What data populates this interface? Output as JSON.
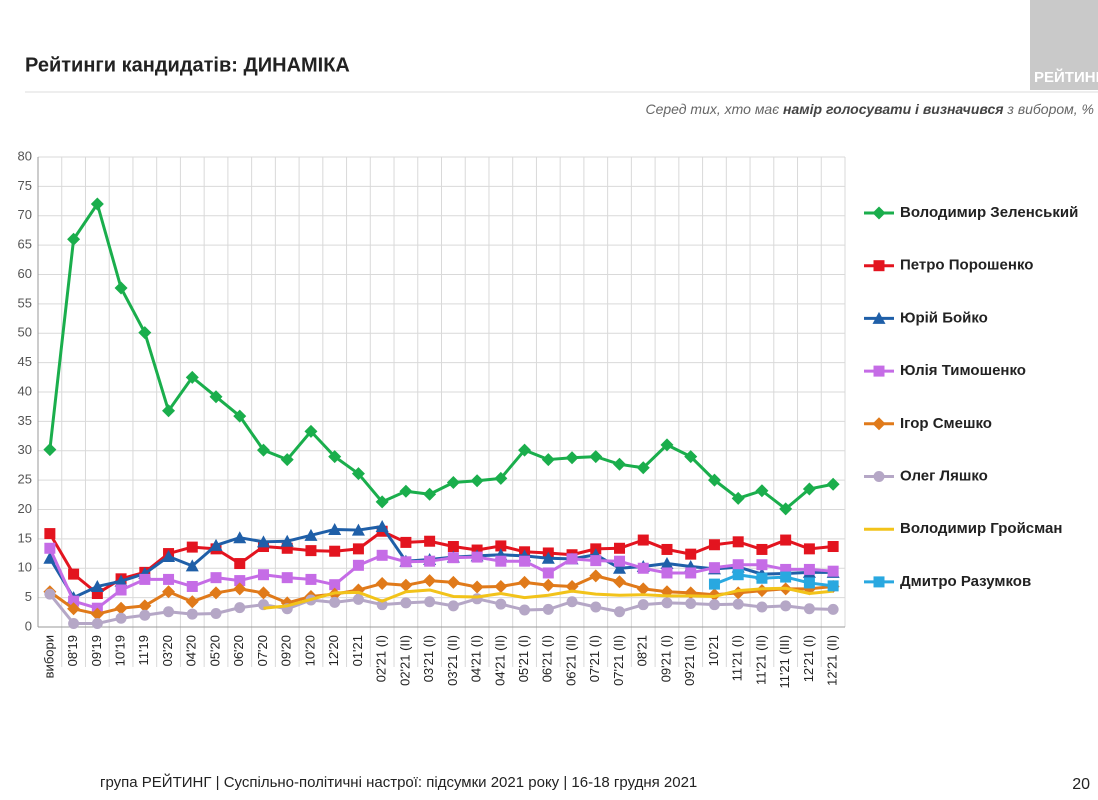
{
  "logo": "РЕЙТИНГ",
  "footer": "група РЕЙТИНГ | Суспільно-політичні настрої: підсумки 2021 року | 16-18 грудня 2021",
  "page_number": "20",
  "chart_data": {
    "type": "line",
    "title": "Рейтинги кандидатів: ДИНАМІКА",
    "subtitle": [
      "Серед тих, хто має ",
      "намір голосувати і визначився",
      " з вибором, %"
    ],
    "categories": [
      "вибори",
      "08'19",
      "09'19",
      "10'19",
      "11'19",
      "03'20",
      "04'20",
      "05'20",
      "06'20",
      "07'20",
      "09'20",
      "10'20",
      "12'20",
      "01'21",
      "02'21 (I)",
      "02'21 (II)",
      "03'21 (I)",
      "03'21 (II)",
      "04'21 (I)",
      "04'21 (II)",
      "05'21 (I)",
      "06'21 (I)",
      "06'21 (II)",
      "07'21 (I)",
      "07'21 (II)",
      "08'21",
      "09'21 (I)",
      "09'21 (II)",
      "10'21",
      "11'21 (I)",
      "11'21 (II)",
      "11'21 (III)",
      "12'21 (I)",
      "12'21 (II)"
    ],
    "ylim": [
      0,
      80
    ],
    "yticks": [
      0,
      5,
      10,
      15,
      20,
      25,
      30,
      35,
      40,
      45,
      50,
      55,
      60,
      65,
      70,
      75,
      80
    ],
    "grid": true,
    "series": [
      {
        "name": "Володимир Зеленський",
        "color": "#1aae4c",
        "marker": "diamond",
        "values": [
          30.2,
          66,
          72,
          57.7,
          50.1,
          36.8,
          42.5,
          39.2,
          35.9,
          30.1,
          28.5,
          33.3,
          29,
          26.1,
          21.3,
          23.1,
          22.6,
          24.6,
          24.9,
          25.3,
          30.1,
          28.5,
          28.8,
          29,
          27.7,
          27.1,
          31,
          29,
          25,
          21.9,
          23.2,
          20.1,
          23.5,
          24.3
        ]
      },
      {
        "name": "Петро Порошенко",
        "color": "#e3141f",
        "marker": "square",
        "values": [
          15.9,
          9,
          5.7,
          8.2,
          9.3,
          12.5,
          13.6,
          13.3,
          10.8,
          13.7,
          13.4,
          13,
          12.9,
          13.3,
          16.3,
          14.4,
          14.6,
          13.7,
          13.1,
          13.8,
          12.8,
          12.6,
          12.3,
          13.3,
          13.4,
          14.8,
          13.2,
          12.4,
          14,
          14.5,
          13.2,
          14.8,
          13.3,
          13.7
        ]
      },
      {
        "name": "Юрій Бойко",
        "color": "#1f5fa8",
        "marker": "triangle",
        "values": [
          11.7,
          5,
          6.9,
          7.8,
          9.1,
          12,
          10.4,
          13.9,
          15.2,
          14.5,
          14.6,
          15.6,
          16.6,
          16.5,
          17.1,
          11.2,
          11.5,
          11.9,
          12.1,
          12.3,
          12.1,
          11.7,
          11.6,
          12.3,
          10,
          10.3,
          10.8,
          10.3,
          9.9,
          10.2,
          9,
          9.1,
          9.3,
          9.3
        ]
      },
      {
        "name": "Юлія Тимошенко",
        "color": "#c56ce6",
        "marker": "square",
        "values": [
          13.4,
          4.4,
          3.2,
          6.3,
          8.1,
          8.1,
          6.9,
          8.4,
          7.9,
          8.9,
          8.4,
          8.1,
          7.2,
          10.5,
          12.2,
          11.1,
          11.2,
          11.8,
          11.9,
          11.2,
          11.2,
          9.2,
          11.6,
          11.3,
          11.2,
          10,
          9.2,
          9.2,
          10.1,
          10.6,
          10.6,
          9.8,
          9.8,
          9.5
        ]
      },
      {
        "name": "Ігор Смешко",
        "color": "#e07a1a",
        "marker": "diamond",
        "values": [
          6,
          3.1,
          2.2,
          3.2,
          3.6,
          6,
          4.3,
          5.8,
          6.5,
          5.8,
          4.1,
          5.2,
          5.6,
          6.3,
          7.4,
          7.1,
          7.9,
          7.6,
          6.8,
          6.9,
          7.6,
          7.1,
          6.9,
          8.7,
          7.7,
          6.5,
          6,
          5.8,
          5.5,
          5.8,
          6.2,
          6.5,
          6.5,
          6.9
        ]
      },
      {
        "name": "Олег Ляшко",
        "color": "#b5a7c6",
        "marker": "circle",
        "values": [
          5.6,
          0.6,
          0.6,
          1.5,
          2,
          2.6,
          2.2,
          2.3,
          3.3,
          3.8,
          3.1,
          4.6,
          4.2,
          4.7,
          3.8,
          4.1,
          4.3,
          3.6,
          4.8,
          3.9,
          2.9,
          3,
          4.3,
          3.4,
          2.6,
          3.8,
          4.1,
          4,
          3.8,
          3.9,
          3.4,
          3.6,
          3.1,
          3
        ]
      },
      {
        "name": "Володимир Гройсман",
        "color": "#f2c31a",
        "marker": "none",
        "values": [
          null,
          null,
          null,
          null,
          null,
          null,
          null,
          null,
          null,
          3.2,
          3.6,
          4.7,
          5.8,
          5.9,
          4.4,
          6,
          6.3,
          5.2,
          5.1,
          5.7,
          5,
          5.4,
          6.1,
          5.6,
          5.4,
          5.5,
          5.3,
          5.3,
          5.2,
          6.2,
          6.5,
          6.6,
          5.7,
          6.1
        ]
      },
      {
        "name": "Дмитро Разумков",
        "color": "#29a8e0",
        "marker": "square",
        "values": [
          null,
          null,
          null,
          null,
          null,
          null,
          null,
          null,
          null,
          null,
          null,
          null,
          null,
          null,
          null,
          null,
          null,
          null,
          null,
          null,
          null,
          null,
          null,
          null,
          null,
          null,
          null,
          null,
          7.3,
          8.9,
          8.3,
          8.5,
          7.5,
          7
        ]
      }
    ]
  }
}
